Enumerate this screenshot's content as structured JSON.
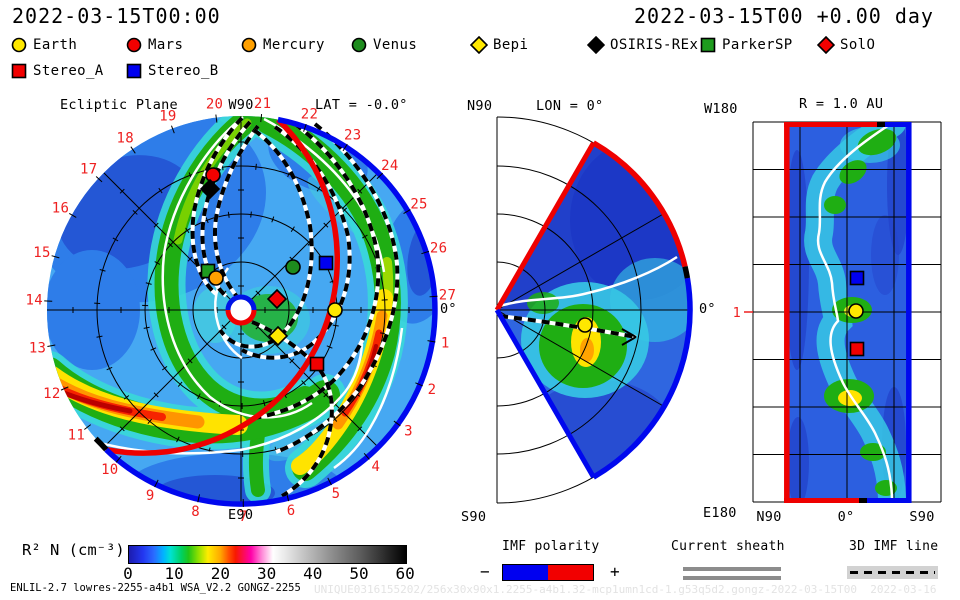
{
  "header": {
    "left_time": "2022-03-15T00:00",
    "right_time": "2022-03-15T00 +0.00 day"
  },
  "legend": {
    "items_row1": [
      {
        "label": "Earth",
        "shape": "circle",
        "color": "#ffe800"
      },
      {
        "label": "Mars",
        "shape": "circle",
        "color": "#f20000"
      },
      {
        "label": "Mercury",
        "shape": "circle",
        "color": "#ffa000"
      },
      {
        "label": "Venus",
        "shape": "circle",
        "color": "#1e8c1e"
      },
      {
        "label": "Bepi",
        "shape": "diamond",
        "color": "#ffe800"
      },
      {
        "label": "OSIRIS-REx",
        "shape": "diamond",
        "color": "#000000"
      },
      {
        "label": "ParkerSP",
        "shape": "square",
        "color": "#1e9c1e"
      },
      {
        "label": "SolO",
        "shape": "diamond",
        "color": "#f20000"
      }
    ],
    "items_row2": [
      {
        "label": "Stereo_A",
        "shape": "square",
        "color": "#f20000"
      },
      {
        "label": "Stereo_B",
        "shape": "square",
        "color": "#0000f0"
      }
    ]
  },
  "chart_data": [
    {
      "id": "ecliptic",
      "type": "heatmap",
      "projection": "polar",
      "quantity": "scaled density R2 N",
      "title": "Ecliptic Plane",
      "lat_label": "LAT = -0.0°",
      "axis_labels": {
        "top": "W90",
        "bottom": "E90",
        "right": "0°"
      },
      "ring_numbers": [
        1,
        2,
        3,
        4,
        5,
        6,
        7,
        8,
        9,
        10,
        11,
        12,
        13,
        14,
        15,
        16,
        17,
        18,
        19,
        20,
        21,
        22,
        23,
        24,
        25,
        26,
        27
      ],
      "radial_grid_au": [
        0.5,
        1.0,
        1.5,
        2.0
      ],
      "boundary_colors": {
        "left_top": "#ee0000",
        "right_bottom": "#0008ee"
      },
      "markers": [
        {
          "name": "Mars",
          "shape": "circle",
          "color": "#f20000",
          "x": 213,
          "y": 175
        },
        {
          "name": "OSIRIS-REx",
          "shape": "diamond",
          "color": "#000000",
          "x": 210,
          "y": 189
        },
        {
          "name": "ParkerSP",
          "shape": "square",
          "color": "#1e9c1e",
          "x": 208,
          "y": 271
        },
        {
          "name": "Mercury",
          "shape": "circle",
          "color": "#ffa000",
          "x": 216,
          "y": 278
        },
        {
          "name": "Venus",
          "shape": "circle",
          "color": "#1e8c1e",
          "x": 293,
          "y": 267
        },
        {
          "name": "Stereo_B",
          "shape": "square",
          "color": "#0000f0",
          "x": 326,
          "y": 263
        },
        {
          "name": "SolO",
          "shape": "diamond",
          "color": "#f20000",
          "x": 277,
          "y": 299
        },
        {
          "name": "Earth",
          "shape": "circle",
          "color": "#ffe800",
          "x": 335,
          "y": 310
        },
        {
          "name": "Bepi",
          "shape": "diamond",
          "color": "#ffe800",
          "x": 278,
          "y": 336
        },
        {
          "name": "Stereo_A",
          "shape": "square",
          "color": "#f20000",
          "x": 317,
          "y": 364
        }
      ]
    },
    {
      "id": "meridional",
      "type": "heatmap",
      "projection": "polar-wedge",
      "title": "LON = 0°",
      "axis_labels": {
        "top": "N90",
        "bottom": "S90",
        "right": "0°"
      },
      "markers": [
        {
          "name": "Earth",
          "shape": "circle",
          "color": "#ffe800",
          "x": 585,
          "y": 325
        }
      ]
    },
    {
      "id": "radial-slice",
      "type": "heatmap",
      "projection": "lat-lon",
      "title": "R = 1.0 AU",
      "axis_labels": {
        "top_left": "W180",
        "bottom_left": "E180",
        "y_tick": "1"
      },
      "x_ticks": [
        "N90",
        "0°",
        "S90"
      ],
      "markers": [
        {
          "name": "Stereo_B",
          "shape": "square",
          "color": "#0000f0",
          "x": 857,
          "y": 278
        },
        {
          "name": "Earth",
          "shape": "circle",
          "color": "#ffe800",
          "x": 856,
          "y": 311
        },
        {
          "name": "Stereo_A",
          "shape": "square",
          "color": "#f20000",
          "x": 857,
          "y": 349
        }
      ]
    },
    {
      "id": "colorbar",
      "type": "colorbar",
      "label": "R² N (cm⁻³)",
      "ticks": [
        0,
        10,
        20,
        30,
        40,
        50,
        60
      ],
      "range": [
        0,
        60
      ]
    }
  ],
  "footer": {
    "model_info": "ENLIL-2.7 lowres-2255-a4b1 WSA_V2.2 GONGZ-2255",
    "watermark": "UNIQUE0316155202/256x30x90x1.2255-a4b1.32-mcp1umn1cd-1.g53q5d2.gongz-2022-03-15T00  2022-03-16",
    "imf_polarity": {
      "label": "IMF polarity",
      "minus": "−",
      "plus": "+",
      "neg_color": "#0000f0",
      "pos_color": "#f20000"
    },
    "current_sheath": {
      "label": "Current sheath"
    },
    "imf_line": {
      "label": "3D IMF line"
    }
  }
}
